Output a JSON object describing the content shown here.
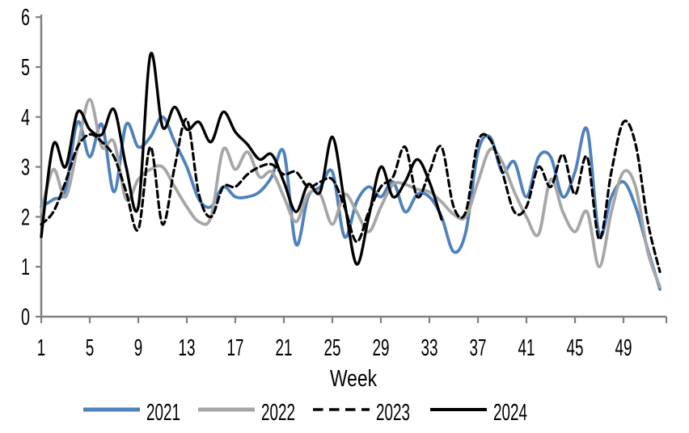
{
  "chart_data": {
    "type": "line",
    "title": "",
    "xlabel": "Week",
    "ylabel": "",
    "grid": false,
    "legend_position": "bottom",
    "axis_color": "#808080",
    "text_color": "#000000",
    "background_color": "#ffffff",
    "ylim": [
      0,
      6
    ],
    "xlim": [
      1,
      52
    ],
    "y_ticks": [
      0,
      1,
      2,
      3,
      4,
      5,
      6
    ],
    "x_ticks": [
      1,
      5,
      9,
      13,
      17,
      21,
      25,
      29,
      33,
      37,
      41,
      45,
      49
    ],
    "x": [
      1,
      2,
      3,
      4,
      5,
      6,
      7,
      8,
      9,
      10,
      11,
      12,
      13,
      14,
      15,
      16,
      17,
      18,
      19,
      20,
      21,
      22,
      23,
      24,
      25,
      26,
      27,
      28,
      29,
      30,
      31,
      32,
      33,
      34,
      35,
      36,
      37,
      38,
      39,
      40,
      41,
      42,
      43,
      44,
      45,
      46,
      47,
      48,
      49,
      50,
      51,
      52
    ],
    "series": [
      {
        "name": "2021",
        "color": "#4F81BD",
        "style": "solid",
        "values": [
          2.2,
          2.35,
          2.55,
          3.9,
          3.2,
          3.85,
          2.5,
          3.85,
          3.4,
          3.6,
          4.0,
          3.5,
          3.0,
          2.35,
          2.2,
          2.6,
          2.4,
          2.4,
          2.5,
          2.8,
          3.3,
          1.45,
          2.4,
          2.6,
          2.9,
          1.6,
          2.3,
          2.6,
          2.4,
          2.7,
          2.1,
          2.45,
          2.4,
          2.0,
          1.3,
          1.7,
          3.3,
          3.6,
          2.9,
          3.1,
          2.4,
          3.2,
          3.2,
          2.4,
          2.9,
          3.75,
          1.65,
          2.4,
          2.7,
          2.2,
          1.35,
          0.55
        ]
      },
      {
        "name": "2022",
        "color": "#A6A6A6",
        "style": "solid",
        "values": [
          2.1,
          2.95,
          2.4,
          3.4,
          4.35,
          3.4,
          3.5,
          2.35,
          2.75,
          2.95,
          3.0,
          2.6,
          2.2,
          1.9,
          2.0,
          3.35,
          2.95,
          3.3,
          2.8,
          2.9,
          2.4,
          1.9,
          2.45,
          2.45,
          1.85,
          2.45,
          2.1,
          1.7,
          2.2,
          2.65,
          2.65,
          2.55,
          2.5,
          2.3,
          2.05,
          2.0,
          2.7,
          3.35,
          3.1,
          2.5,
          2.0,
          1.65,
          2.75,
          2.1,
          1.7,
          2.1,
          1.0,
          2.1,
          2.9,
          2.6,
          1.3,
          0.6
        ]
      },
      {
        "name": "2023",
        "color": "#000000",
        "style": "dashed",
        "values": [
          1.85,
          2.1,
          2.7,
          3.4,
          3.65,
          3.5,
          3.2,
          2.5,
          1.75,
          3.4,
          1.85,
          3.0,
          3.95,
          2.45,
          2.0,
          2.6,
          2.6,
          2.85,
          3.0,
          3.05,
          2.85,
          2.9,
          2.6,
          2.7,
          2.75,
          2.2,
          1.5,
          2.1,
          2.6,
          2.8,
          3.4,
          2.4,
          2.9,
          3.4,
          2.2,
          2.1,
          3.5,
          3.55,
          2.9,
          2.1,
          2.2,
          3.0,
          2.6,
          3.25,
          2.45,
          3.2,
          1.55,
          2.9,
          3.9,
          3.45,
          1.9,
          0.9
        ]
      },
      {
        "name": "2024",
        "color": "#000000",
        "style": "solid",
        "values": [
          1.6,
          3.45,
          3.0,
          4.1,
          3.75,
          3.65,
          4.15,
          3.0,
          2.2,
          5.25,
          3.8,
          4.2,
          3.75,
          3.9,
          3.5,
          4.1,
          3.7,
          3.45,
          3.15,
          3.25,
          2.7,
          2.1,
          2.65,
          2.5,
          3.6,
          2.3,
          1.05,
          2.0,
          3.0,
          2.4,
          2.7,
          3.15,
          2.7,
          1.95
        ]
      }
    ]
  }
}
